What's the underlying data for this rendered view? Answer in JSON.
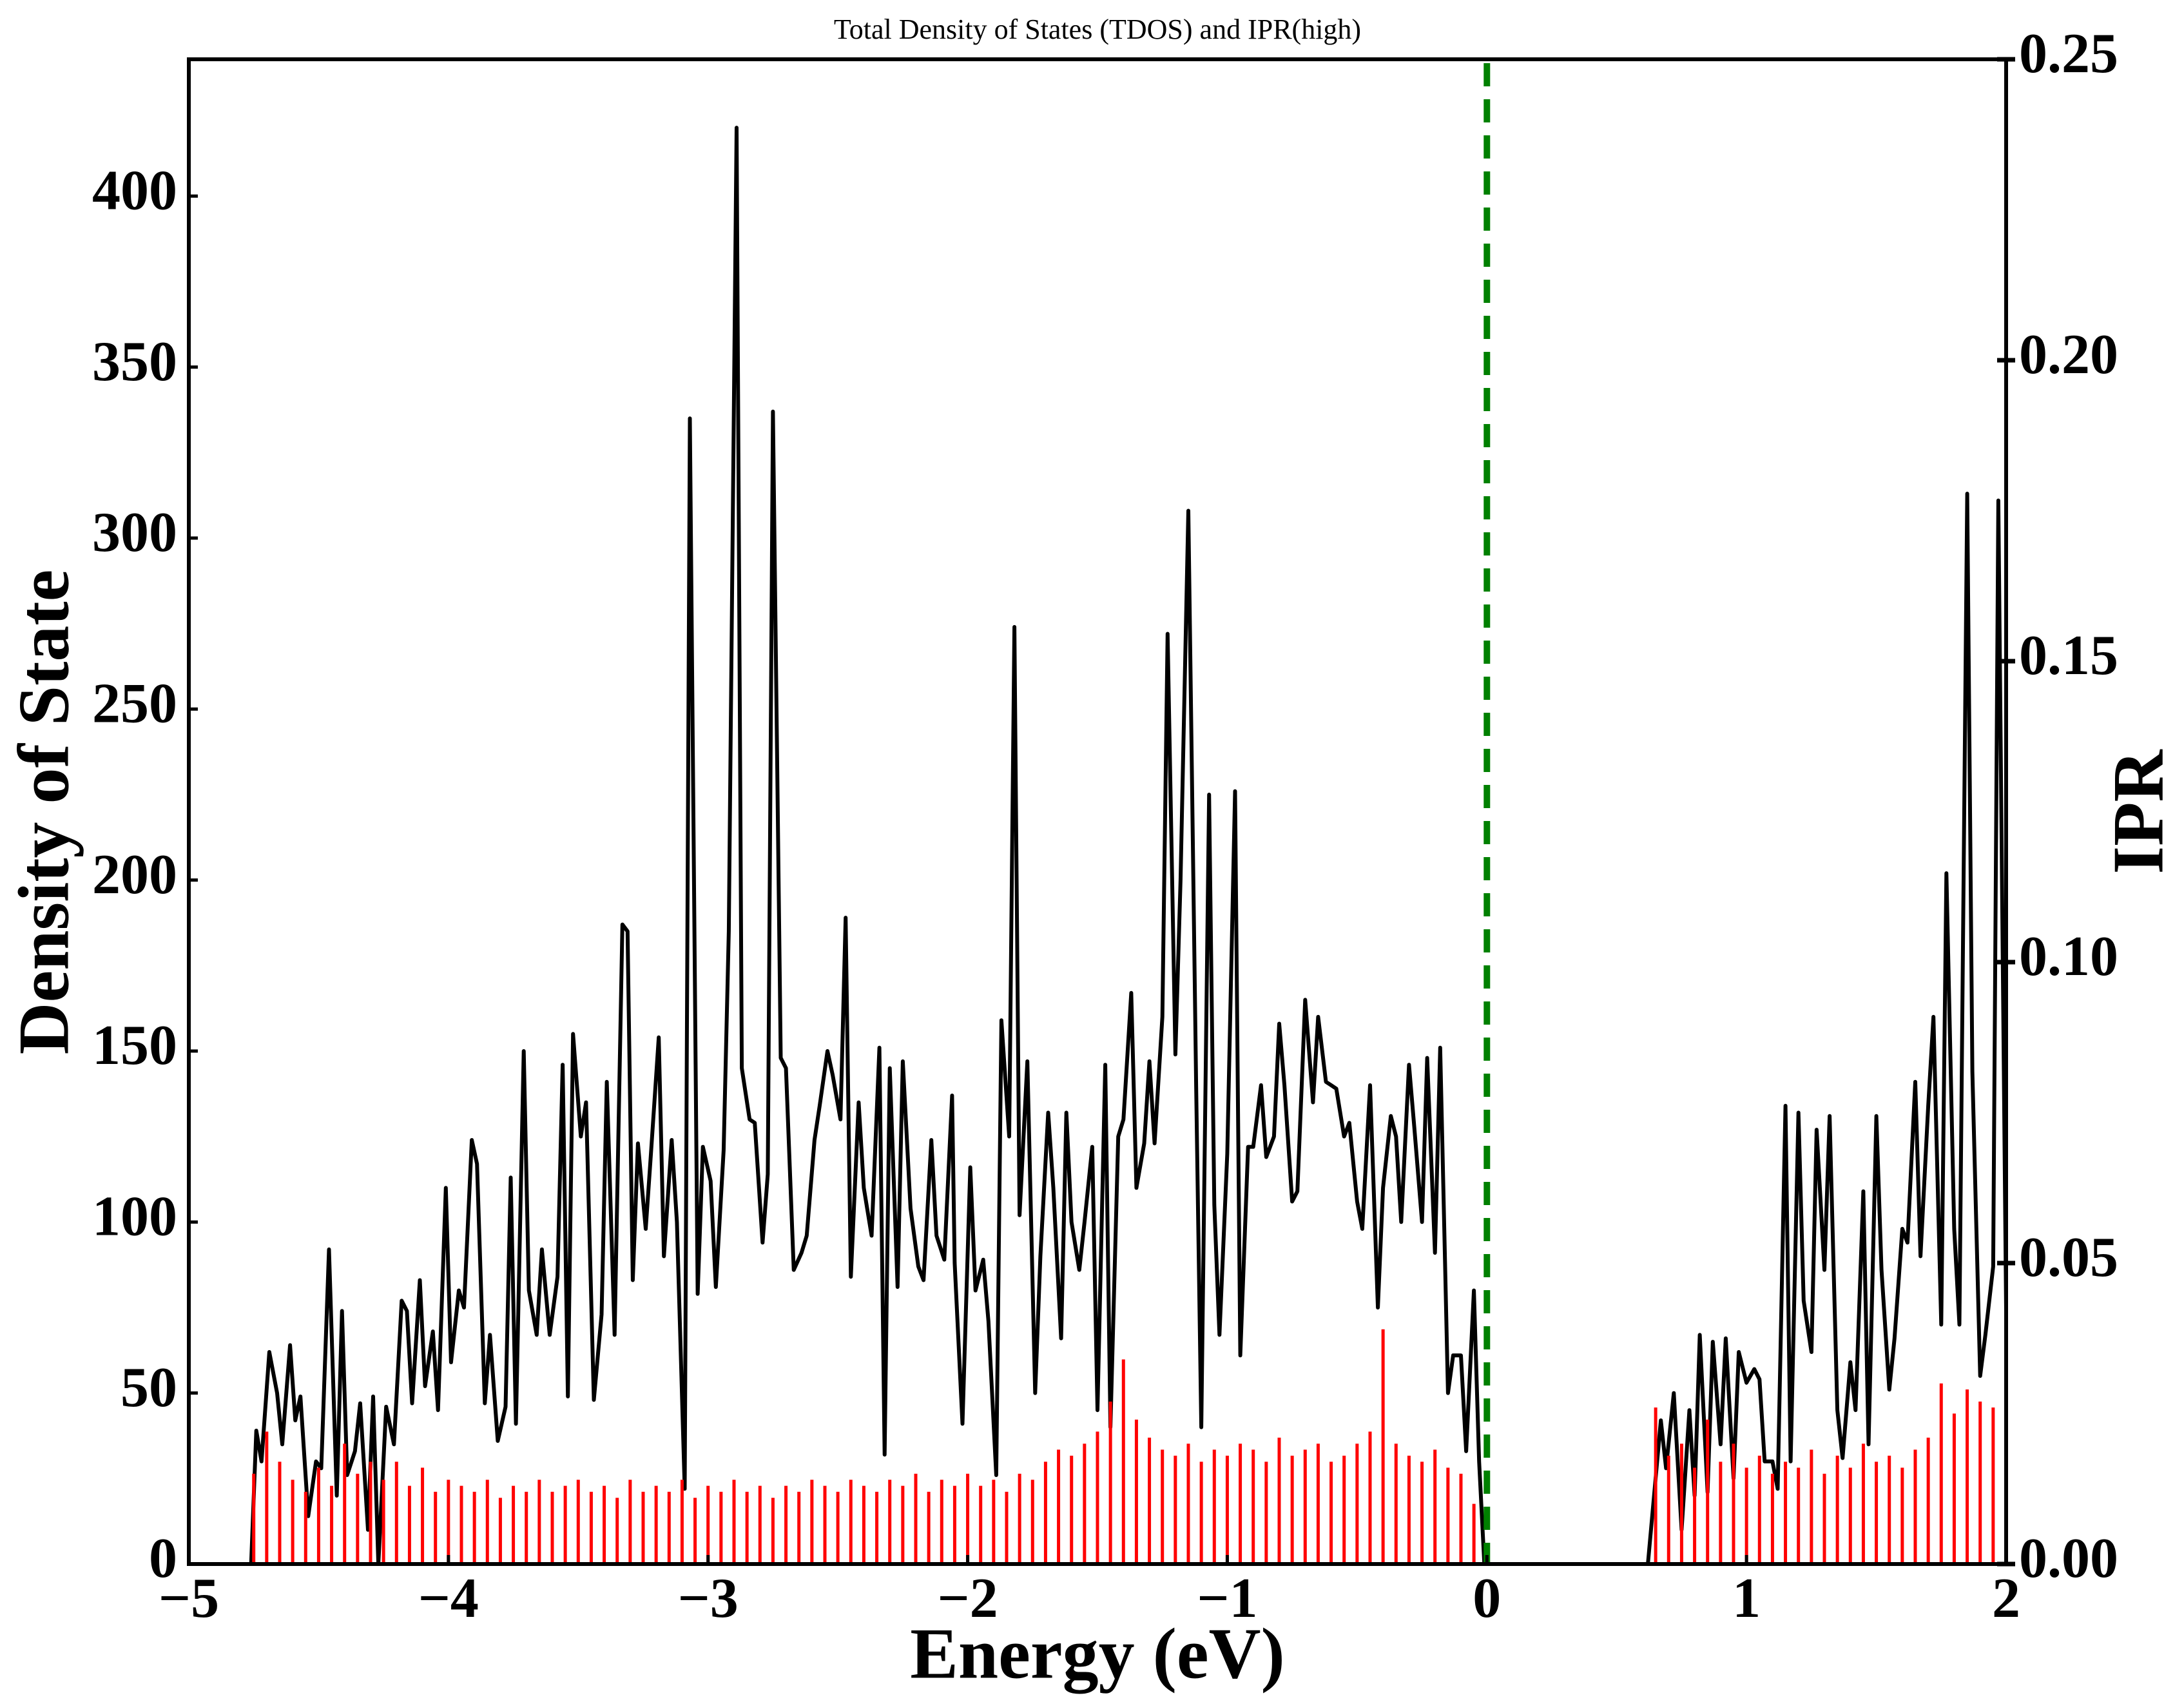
{
  "chart_data": {
    "type": "line",
    "title": "Total Density of States (TDOS) and IPR(high)",
    "xlabel": "Energy (eV)",
    "ylabel": "Density of State",
    "y2label": "IPR",
    "y2label_color": "#ff0000",
    "xlim": [
      -5,
      2
    ],
    "ylim": [
      0,
      440
    ],
    "y2lim": [
      0,
      0.25
    ],
    "xticks": [
      {
        "value": -5,
        "label": "−5"
      },
      {
        "value": -4,
        "label": "−4"
      },
      {
        "value": -3,
        "label": "−3"
      },
      {
        "value": -2,
        "label": "−2"
      },
      {
        "value": -1,
        "label": "−1"
      },
      0,
      1,
      2
    ],
    "yticks": [
      0,
      50,
      100,
      150,
      200,
      250,
      300,
      350,
      400
    ],
    "y2ticks": [
      {
        "value": 0,
        "label": "0.00"
      },
      {
        "value": 0.05,
        "label": "0.05"
      },
      {
        "value": 0.1,
        "label": "0.10"
      },
      {
        "value": 0.15,
        "label": "0.15"
      },
      {
        "value": 0.2,
        "label": "0.20"
      },
      {
        "value": 0.25,
        "label": "0.25"
      }
    ],
    "vline": 0,
    "vline_color": "#008000",
    "series": [
      {
        "type": "line",
        "color": "#000000",
        "x": [
          -4.76,
          -4.74,
          -4.72,
          -4.69,
          -4.66,
          -4.64,
          -4.61,
          -4.59,
          -4.57,
          -4.54,
          -4.51,
          -4.49,
          -4.46,
          -4.43,
          -4.41,
          -4.39,
          -4.36,
          -4.34,
          -4.31,
          -4.29,
          -4.27,
          -4.24,
          -4.21,
          -4.18,
          -4.16,
          -4.14,
          -4.11,
          -4.09,
          -4.06,
          -4.04,
          -4.01,
          -3.99,
          -3.96,
          -3.94,
          -3.91,
          -3.89,
          -3.86,
          -3.84,
          -3.81,
          -3.78,
          -3.76,
          -3.74,
          -3.71,
          -3.69,
          -3.66,
          -3.64,
          -3.61,
          -3.58,
          -3.56,
          -3.54,
          -3.52,
          -3.49,
          -3.47,
          -3.44,
          -3.41,
          -3.39,
          -3.36,
          -3.33,
          -3.31,
          -3.29,
          -3.27,
          -3.24,
          -3.22,
          -3.19,
          -3.17,
          -3.14,
          -3.12,
          -3.09,
          -3.07,
          -3.04,
          -3.02,
          -2.99,
          -2.97,
          -2.94,
          -2.92,
          -2.89,
          -2.87,
          -2.84,
          -2.82,
          -2.79,
          -2.77,
          -2.75,
          -2.72,
          -2.7,
          -2.67,
          -2.64,
          -2.62,
          -2.59,
          -2.57,
          -2.54,
          -2.52,
          -2.49,
          -2.47,
          -2.45,
          -2.42,
          -2.4,
          -2.37,
          -2.34,
          -2.32,
          -2.3,
          -2.27,
          -2.25,
          -2.22,
          -2.19,
          -2.17,
          -2.14,
          -2.12,
          -2.09,
          -2.06,
          -2.05,
          -2.02,
          -1.99,
          -1.97,
          -1.94,
          -1.92,
          -1.89,
          -1.87,
          -1.84,
          -1.82,
          -1.8,
          -1.77,
          -1.74,
          -1.72,
          -1.69,
          -1.67,
          -1.64,
          -1.62,
          -1.6,
          -1.57,
          -1.55,
          -1.52,
          -1.5,
          -1.47,
          -1.45,
          -1.42,
          -1.4,
          -1.37,
          -1.35,
          -1.32,
          -1.3,
          -1.28,
          -1.25,
          -1.23,
          -1.2,
          -1.18,
          -1.15,
          -1.12,
          -1.1,
          -1.07,
          -1.05,
          -1.03,
          -1.0,
          -0.97,
          -0.95,
          -0.92,
          -0.9,
          -0.87,
          -0.85,
          -0.82,
          -0.8,
          -0.78,
          -0.75,
          -0.73,
          -0.7,
          -0.67,
          -0.65,
          -0.62,
          -0.6,
          -0.58,
          -0.55,
          -0.53,
          -0.5,
          -0.48,
          -0.45,
          -0.42,
          -0.4,
          -0.37,
          -0.35,
          -0.33,
          -0.3,
          -0.28,
          -0.25,
          -0.23,
          -0.2,
          -0.18,
          -0.15,
          -0.13,
          -0.1,
          -0.08,
          -0.05,
          -0.03,
          -0.01,
          0.3,
          0.62,
          0.67,
          0.69,
          0.72,
          0.75,
          0.78,
          0.8,
          0.82,
          0.85,
          0.87,
          0.9,
          0.92,
          0.95,
          0.97,
          1.0,
          1.03,
          1.05,
          1.07,
          1.1,
          1.12,
          1.15,
          1.17,
          1.2,
          1.22,
          1.25,
          1.27,
          1.3,
          1.32,
          1.35,
          1.37,
          1.4,
          1.42,
          1.45,
          1.47,
          1.5,
          1.52,
          1.55,
          1.57,
          1.6,
          1.62,
          1.65,
          1.67,
          1.7,
          1.72,
          1.75,
          1.77,
          1.8,
          1.82,
          1.85,
          1.87,
          1.9,
          1.92,
          1.95,
          1.97,
          2.0
        ],
        "values": [
          0,
          39,
          30,
          62,
          50,
          35,
          64,
          42,
          49,
          14,
          30,
          28,
          92,
          20,
          74,
          26,
          33,
          47,
          10,
          49,
          0,
          46,
          35,
          77,
          74,
          47,
          83,
          52,
          68,
          45,
          110,
          59,
          80,
          75,
          124,
          117,
          47,
          67,
          36,
          46,
          113,
          41,
          150,
          80,
          67,
          92,
          67,
          84,
          146,
          49,
          155,
          125,
          135,
          48,
          73,
          141,
          67,
          187,
          185,
          83,
          123,
          98,
          120,
          154,
          90,
          124,
          100,
          22,
          335,
          79,
          122,
          112,
          81,
          121,
          185,
          420,
          145,
          130,
          129,
          94,
          114,
          337,
          148,
          145,
          86,
          91,
          96,
          124,
          134,
          150,
          143,
          130,
          189,
          84,
          135,
          110,
          96,
          151,
          32,
          145,
          81,
          147,
          104,
          87,
          83,
          124,
          96,
          89,
          137,
          88,
          41,
          116,
          80,
          89,
          71,
          26,
          159,
          125,
          274,
          102,
          147,
          50,
          90,
          132,
          110,
          66,
          132,
          100,
          86,
          100,
          122,
          45,
          146,
          40,
          125,
          130,
          167,
          110,
          123,
          147,
          123,
          160,
          272,
          149,
          200,
          308,
          140,
          40,
          225,
          105,
          67,
          120,
          226,
          61,
          122,
          122,
          140,
          119,
          125,
          158,
          140,
          106,
          109,
          165,
          135,
          160,
          141,
          140,
          139,
          125,
          129,
          106,
          98,
          140,
          75,
          110,
          131,
          125,
          100,
          146,
          128,
          100,
          148,
          91,
          151,
          50,
          61,
          61,
          33,
          80,
          30,
          0,
          null,
          0,
          42,
          28,
          50,
          10,
          45,
          20,
          67,
          21,
          65,
          35,
          66,
          25,
          62,
          53,
          57,
          54,
          30,
          30,
          22,
          134,
          30,
          132,
          77,
          62,
          127,
          86,
          131,
          45,
          31,
          59,
          45,
          109,
          35,
          131,
          86,
          51,
          66,
          98,
          94,
          141,
          90,
          134,
          160,
          70,
          202,
          98,
          70,
          313,
          144,
          55,
          67,
          87,
          311,
          74
        ]
      },
      {
        "type": "bar",
        "axis": "y2",
        "color": "#ff0000",
        "x": [
          -4.75,
          -4.7,
          -4.65,
          -4.6,
          -4.55,
          -4.5,
          -4.45,
          -4.4,
          -4.35,
          -4.3,
          -4.25,
          -4.2,
          -4.15,
          -4.1,
          -4.05,
          -4.0,
          -3.95,
          -3.9,
          -3.85,
          -3.8,
          -3.75,
          -3.7,
          -3.65,
          -3.6,
          -3.55,
          -3.5,
          -3.45,
          -3.4,
          -3.35,
          -3.3,
          -3.25,
          -3.2,
          -3.15,
          -3.1,
          -3.05,
          -3.0,
          -2.95,
          -2.9,
          -2.85,
          -2.8,
          -2.75,
          -2.7,
          -2.65,
          -2.6,
          -2.55,
          -2.5,
          -2.45,
          -2.4,
          -2.35,
          -2.3,
          -2.25,
          -2.2,
          -2.15,
          -2.1,
          -2.05,
          -2.0,
          -1.95,
          -1.9,
          -1.85,
          -1.8,
          -1.75,
          -1.7,
          -1.65,
          -1.6,
          -1.55,
          -1.5,
          -1.45,
          -1.4,
          -1.35,
          -1.3,
          -1.25,
          -1.2,
          -1.15,
          -1.1,
          -1.05,
          -1.0,
          -0.95,
          -0.9,
          -0.85,
          -0.8,
          -0.75,
          -0.7,
          -0.65,
          -0.6,
          -0.55,
          -0.5,
          -0.45,
          -0.4,
          -0.35,
          -0.3,
          -0.25,
          -0.2,
          -0.15,
          -0.1,
          -0.05,
          0.65,
          0.7,
          0.75,
          0.8,
          0.85,
          0.9,
          0.95,
          1.0,
          1.05,
          1.1,
          1.15,
          1.2,
          1.25,
          1.3,
          1.35,
          1.4,
          1.45,
          1.5,
          1.55,
          1.6,
          1.65,
          1.7,
          1.75,
          1.8,
          1.85,
          1.9,
          1.95,
          2.0
        ],
        "values": [
          0.015,
          0.022,
          0.017,
          0.014,
          0.012,
          0.016,
          0.013,
          0.02,
          0.015,
          0.017,
          0.014,
          0.017,
          0.013,
          0.016,
          0.012,
          0.014,
          0.013,
          0.012,
          0.014,
          0.011,
          0.013,
          0.012,
          0.014,
          0.012,
          0.013,
          0.014,
          0.012,
          0.013,
          0.011,
          0.014,
          0.012,
          0.013,
          0.012,
          0.014,
          0.011,
          0.013,
          0.012,
          0.014,
          0.012,
          0.013,
          0.011,
          0.013,
          0.012,
          0.014,
          0.013,
          0.012,
          0.014,
          0.013,
          0.012,
          0.014,
          0.013,
          0.015,
          0.012,
          0.014,
          0.013,
          0.015,
          0.013,
          0.014,
          0.012,
          0.015,
          0.014,
          0.017,
          0.019,
          0.018,
          0.02,
          0.022,
          0.027,
          0.034,
          0.024,
          0.021,
          0.019,
          0.018,
          0.02,
          0.017,
          0.019,
          0.018,
          0.02,
          0.019,
          0.017,
          0.021,
          0.018,
          0.019,
          0.02,
          0.017,
          0.018,
          0.02,
          0.022,
          0.039,
          0.02,
          0.018,
          0.017,
          0.019,
          0.016,
          0.015,
          0.01,
          0.026,
          0.018,
          0.02,
          0.016,
          0.024,
          0.017,
          0.02,
          0.016,
          0.018,
          0.015,
          0.017,
          0.016,
          0.019,
          0.015,
          0.018,
          0.016,
          0.02,
          0.017,
          0.018,
          0.016,
          0.019,
          0.021,
          0.03,
          0.025,
          0.029,
          0.027,
          0.026,
          0.018
        ]
      }
    ]
  }
}
